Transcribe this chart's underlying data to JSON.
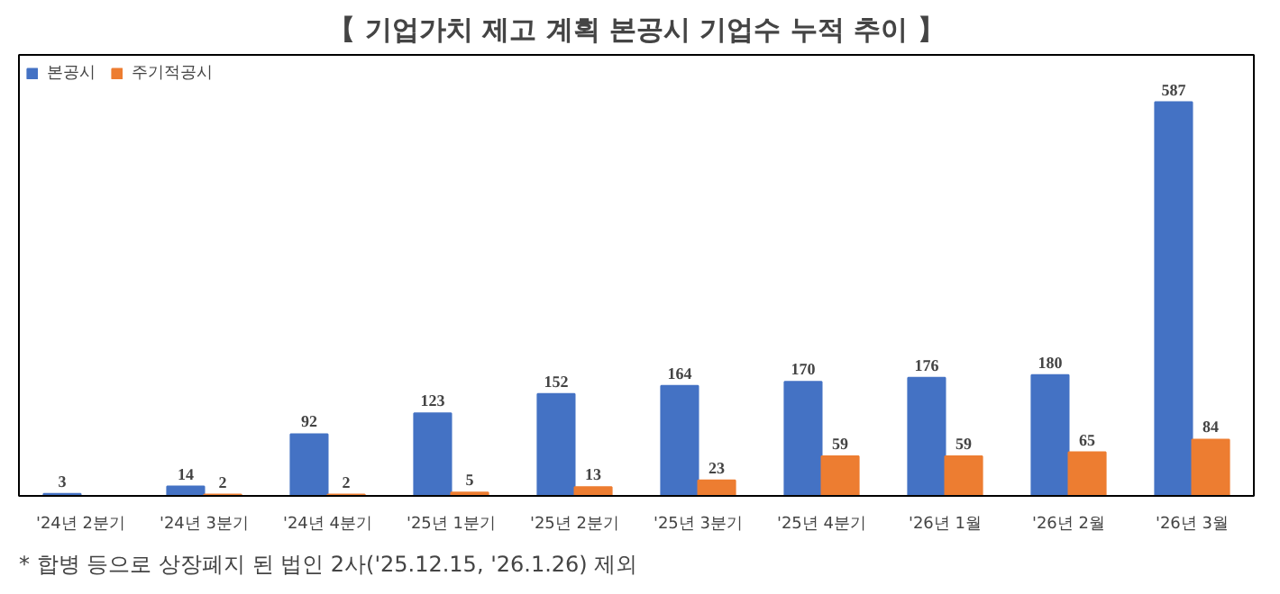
{
  "chart_data": {
    "type": "bar",
    "title": "【 기업가치 제고 계획 본공시 기업수 누적 추이 】",
    "categories": [
      "'24년 2분기",
      "'24년 3분기",
      "'24년 4분기",
      "'25년 1분기",
      "'25년 2분기",
      "'25년 3분기",
      "'25년 4분기",
      "'26년 1월",
      "'26년 2월",
      "'26년 3월"
    ],
    "series": [
      {
        "name": "본공시",
        "color": "#4472c4",
        "values": [
          3,
          14,
          92,
          123,
          152,
          164,
          170,
          176,
          180,
          587
        ]
      },
      {
        "name": "주기적공시",
        "color": "#ed7d31",
        "values": [
          null,
          2,
          2,
          5,
          13,
          23,
          59,
          59,
          65,
          84
        ]
      }
    ],
    "data_labels": true,
    "legend": "top left",
    "grid": false,
    "annotations": [
      "* 합병 등으로 상장폐지 된 법인 2사('25.12.15, '26.1.26) 제외"
    ]
  }
}
